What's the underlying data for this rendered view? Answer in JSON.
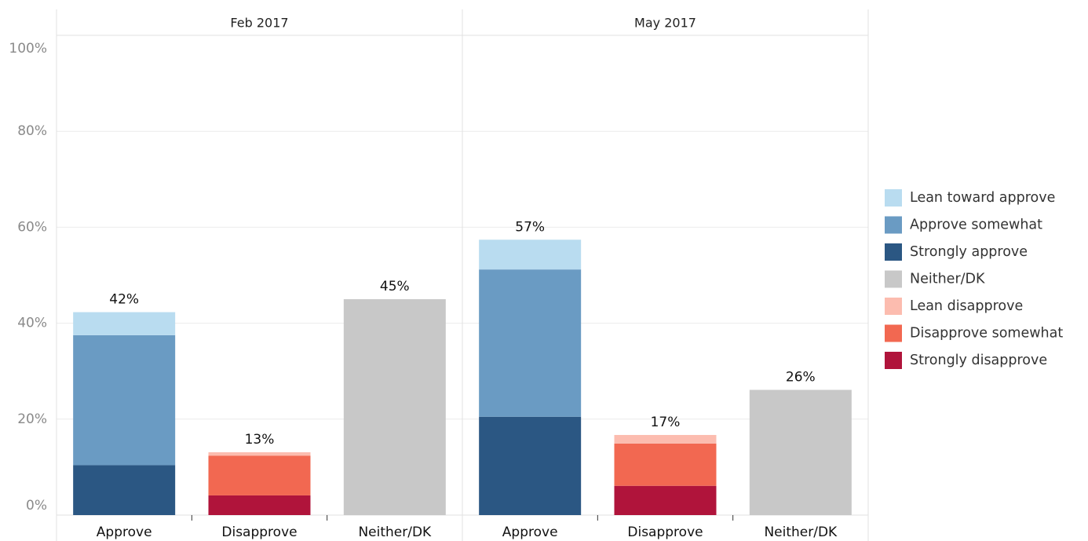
{
  "chart_data": {
    "type": "bar",
    "stacked": true,
    "facets": [
      "Feb 2017",
      "May 2017"
    ],
    "categories": [
      "Approve",
      "Disapprove",
      "Neither/DK"
    ],
    "series": [
      {
        "name": "Lean toward approve",
        "color": "#b9dcf0",
        "values": [
          [
            4.8,
            null,
            null
          ],
          [
            6.2,
            null,
            null
          ]
        ]
      },
      {
        "name": "Approve somewhat",
        "color": "#6a9bc3",
        "values": [
          [
            27.1,
            null,
            null
          ],
          [
            30.7,
            null,
            null
          ]
        ]
      },
      {
        "name": "Strongly approve",
        "color": "#2b5783",
        "values": [
          [
            10.4,
            null,
            null
          ],
          [
            20.5,
            null,
            null
          ]
        ]
      },
      {
        "name": "Neither/DK",
        "color": "#c8c8c8",
        "values": [
          [
            null,
            null,
            45
          ],
          [
            null,
            null,
            26.1
          ]
        ]
      },
      {
        "name": "Lean disapprove",
        "color": "#fcbcaf",
        "values": [
          [
            null,
            0.7,
            null
          ],
          [
            null,
            1.8,
            null
          ]
        ]
      },
      {
        "name": "Disapprove somewhat",
        "color": "#f26851",
        "values": [
          [
            null,
            8.3,
            null
          ],
          [
            null,
            8.8,
            null
          ]
        ]
      },
      {
        "name": "Strongly disapprove",
        "color": "#b0143b",
        "values": [
          [
            null,
            4.1,
            null
          ],
          [
            null,
            6.1,
            null
          ]
        ]
      }
    ],
    "totals": [
      [
        42.3,
        13.1,
        45
      ],
      [
        57.4,
        16.7,
        26.1
      ]
    ],
    "value_labels": [
      [
        "42%",
        "13%",
        "45%"
      ],
      [
        "57%",
        "17%",
        "26%"
      ]
    ],
    "ylim": [
      0,
      100
    ],
    "yticks": [
      {
        "value": 0,
        "label": "0%"
      },
      {
        "value": 20,
        "label": "20%"
      },
      {
        "value": 40,
        "label": "40%"
      },
      {
        "value": 60,
        "label": "60%"
      },
      {
        "value": 80,
        "label": "80%"
      },
      {
        "value": 100,
        "label": "100%"
      }
    ],
    "grid": true,
    "legend": "right"
  }
}
